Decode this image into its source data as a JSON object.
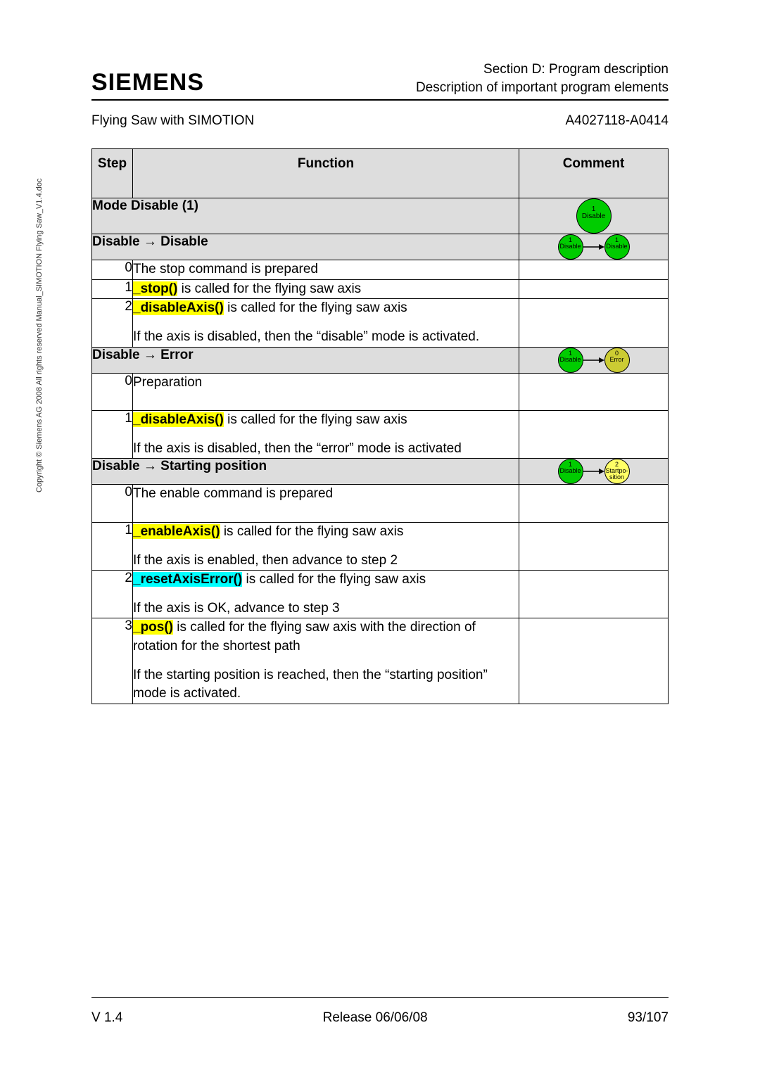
{
  "logo": "SIEMENS",
  "header": {
    "line1": "Section D:  Program description",
    "line2": "Description of important program elements"
  },
  "subheader": {
    "left": "Flying Saw with SIMOTION",
    "right": "A4027118-A0414"
  },
  "side_text": "Copyright © Siemens AG 2008 All rights reserved   Manual_SIMOTION Flying Saw_V1.4.doc",
  "columns": {
    "step": "Step",
    "function": "Function",
    "comment": "Comment"
  },
  "colors": {
    "section_bg": "#dddddd",
    "hl_yellow": "#ffff00",
    "hl_cyan": "#00ffff",
    "node_green": "#00cc00",
    "node_yellow": "#ffff66",
    "node_olive": "#cccc33"
  },
  "sections": [
    {
      "label": "Mode Disable (1)",
      "diagram": {
        "type": "single",
        "node": {
          "num": "1",
          "text": "Disable",
          "color": "green",
          "size": "big"
        }
      },
      "rows": []
    },
    {
      "label": "Disable → Disable",
      "diagram": {
        "type": "pair",
        "from": {
          "num": "1",
          "text": "Disable",
          "color": "green"
        },
        "to": {
          "num": "1",
          "text": "Disable",
          "color": "green"
        }
      },
      "rows": [
        {
          "step": "0",
          "func_html": "The stop command is prepared"
        },
        {
          "step": "1",
          "func_html": "<span class='hl-yellow'><b>_stop()</b></span> is called for the flying saw axis"
        },
        {
          "step": "2",
          "func_html": "<span class='hl-yellow'><b>_disableAxis()</b></span> is called for the flying saw axis<div class='para-gap'></div>If the axis is disabled, then the “disable” mode is activated."
        }
      ]
    },
    {
      "label": "Disable → Error",
      "diagram": {
        "type": "pair",
        "from": {
          "num": "1",
          "text": "Disable",
          "color": "green"
        },
        "to": {
          "num": "0",
          "text": "Error",
          "color": "olive"
        }
      },
      "rows": [
        {
          "step": "0",
          "func_html": "Preparation",
          "tall": true
        },
        {
          "step": "1",
          "func_html": "<span class='hl-yellow'><b>_disableAxis()</b></span> is called for the flying saw axis<div class='para-gap'></div>If the axis is disabled, then the “error” mode is activated"
        }
      ]
    },
    {
      "label": "Disable → Starting position",
      "diagram": {
        "type": "pair",
        "from": {
          "num": "1",
          "text": "Disable",
          "color": "green"
        },
        "to": {
          "num": "2",
          "text": "Startpo-\nsition",
          "color": "yellow"
        }
      },
      "rows": [
        {
          "step": "0",
          "func_html": "The enable command is prepared",
          "tall": true
        },
        {
          "step": "1",
          "func_html": "<span class='hl-yellow'><b>_enableAxis()</b></span> is called for the flying saw axis<div class='para-gap'></div>If the axis is enabled, then advance to step 2"
        },
        {
          "step": "2",
          "func_html": "<span class='hl-cyan'><b>_resetAxisError()</b></span> is called for the flying saw axis<div class='para-gap'></div>If the axis is OK, advance to step 3"
        },
        {
          "step": "3",
          "func_html": "<span class='hl-yellow'><b>_pos()</b></span> is called for the flying saw axis with the direction of rotation for the shortest path<div class='para-gap'></div>If the starting position is reached, then the “starting position” mode is activated."
        }
      ]
    }
  ],
  "footer": {
    "left": "V 1.4",
    "center": "Release 06/06/08",
    "right": "93/107"
  }
}
